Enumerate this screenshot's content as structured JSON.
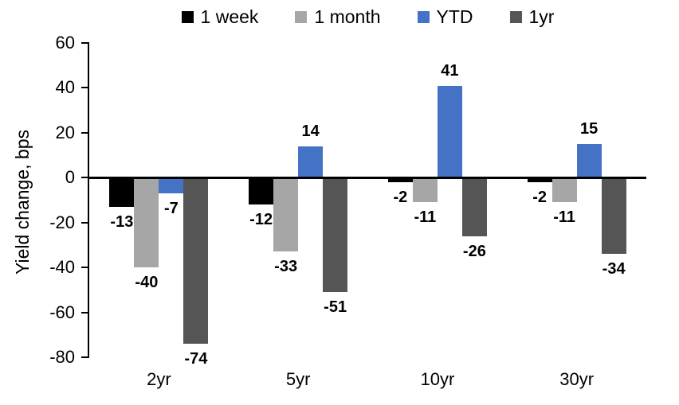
{
  "chart_data": {
    "type": "bar",
    "title": "",
    "xlabel": "",
    "ylabel": "Yield change, bps",
    "ylim": [
      -80,
      60
    ],
    "yticks": [
      60,
      40,
      20,
      0,
      -20,
      -40,
      -60,
      -80
    ],
    "categories": [
      "2yr",
      "5yr",
      "10yr",
      "30yr"
    ],
    "series": [
      {
        "name": "1 week",
        "color": "#000000",
        "values": [
          -13,
          -12,
          -2,
          -2
        ]
      },
      {
        "name": "1 month",
        "color": "#A6A6A6",
        "values": [
          -40,
          -33,
          -11,
          -11
        ]
      },
      {
        "name": "YTD",
        "color": "#4472C4",
        "values": [
          -7,
          14,
          41,
          15
        ]
      },
      {
        "name": "1yr",
        "color": "#555555",
        "values": [
          -74,
          -51,
          -26,
          -34
        ]
      }
    ],
    "legend_position": "top",
    "grid": false,
    "data_labels": true,
    "axis_color": "#000000",
    "background_color": "#FFFFFF"
  }
}
